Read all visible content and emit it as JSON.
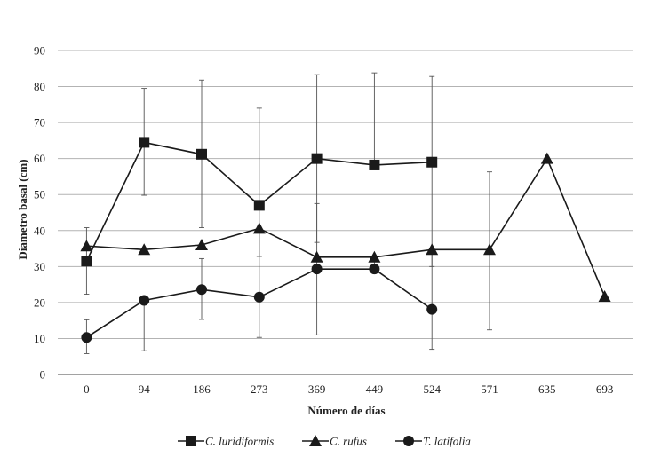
{
  "chart_data": {
    "type": "line",
    "xlabel": "Número de días",
    "ylabel": "Diametro basal (cm)",
    "ylim": [
      0,
      90
    ],
    "yticks": [
      "0",
      "10",
      "20",
      "30",
      "40",
      "50",
      "60",
      "70",
      "80",
      "90"
    ],
    "categories": [
      "0",
      "94",
      "186",
      "273",
      "369",
      "449",
      "524",
      "571",
      "635",
      "693"
    ],
    "grid": "horizontal",
    "legend_position": "bottom",
    "series": [
      {
        "name": "C. luridiformis",
        "marker": "square",
        "values": [
          31.5,
          64.5,
          61.2,
          47,
          60,
          58.2,
          59,
          null,
          null,
          null
        ],
        "error_low": [
          22.3,
          49.8,
          40.8,
          10.3,
          36.7,
          null,
          30,
          null,
          null,
          null
        ],
        "error_high": [
          40.8,
          79.5,
          81.8,
          74,
          83.3,
          83.8,
          82.8,
          null,
          null,
          null
        ]
      },
      {
        "name": "C. rufus",
        "marker": "triangle",
        "values": [
          35.7,
          34.7,
          36,
          40.6,
          32.6,
          32.6,
          34.7,
          34.7,
          60,
          21.7
        ],
        "error_low": [
          null,
          null,
          null,
          32.8,
          11,
          30,
          7,
          12.4,
          null,
          null
        ],
        "error_high": [
          null,
          null,
          null,
          null,
          47.5,
          null,
          null,
          56.3,
          null,
          null
        ]
      },
      {
        "name": "T. latifolia",
        "marker": "circle",
        "values": [
          10.3,
          20.6,
          23.6,
          21.5,
          29.3,
          29.3,
          18.1,
          null,
          null,
          null
        ],
        "error_low": [
          5.8,
          6.6,
          15.3,
          null,
          null,
          null,
          null,
          null,
          null,
          null
        ],
        "error_high": [
          15.2,
          null,
          32.2,
          null,
          null,
          null,
          null,
          null,
          null,
          null
        ]
      }
    ]
  },
  "colors": {
    "series": "#1a1a1a",
    "grid": "#b3b3b3",
    "error_bar": "#555555",
    "axis": "#444444"
  }
}
